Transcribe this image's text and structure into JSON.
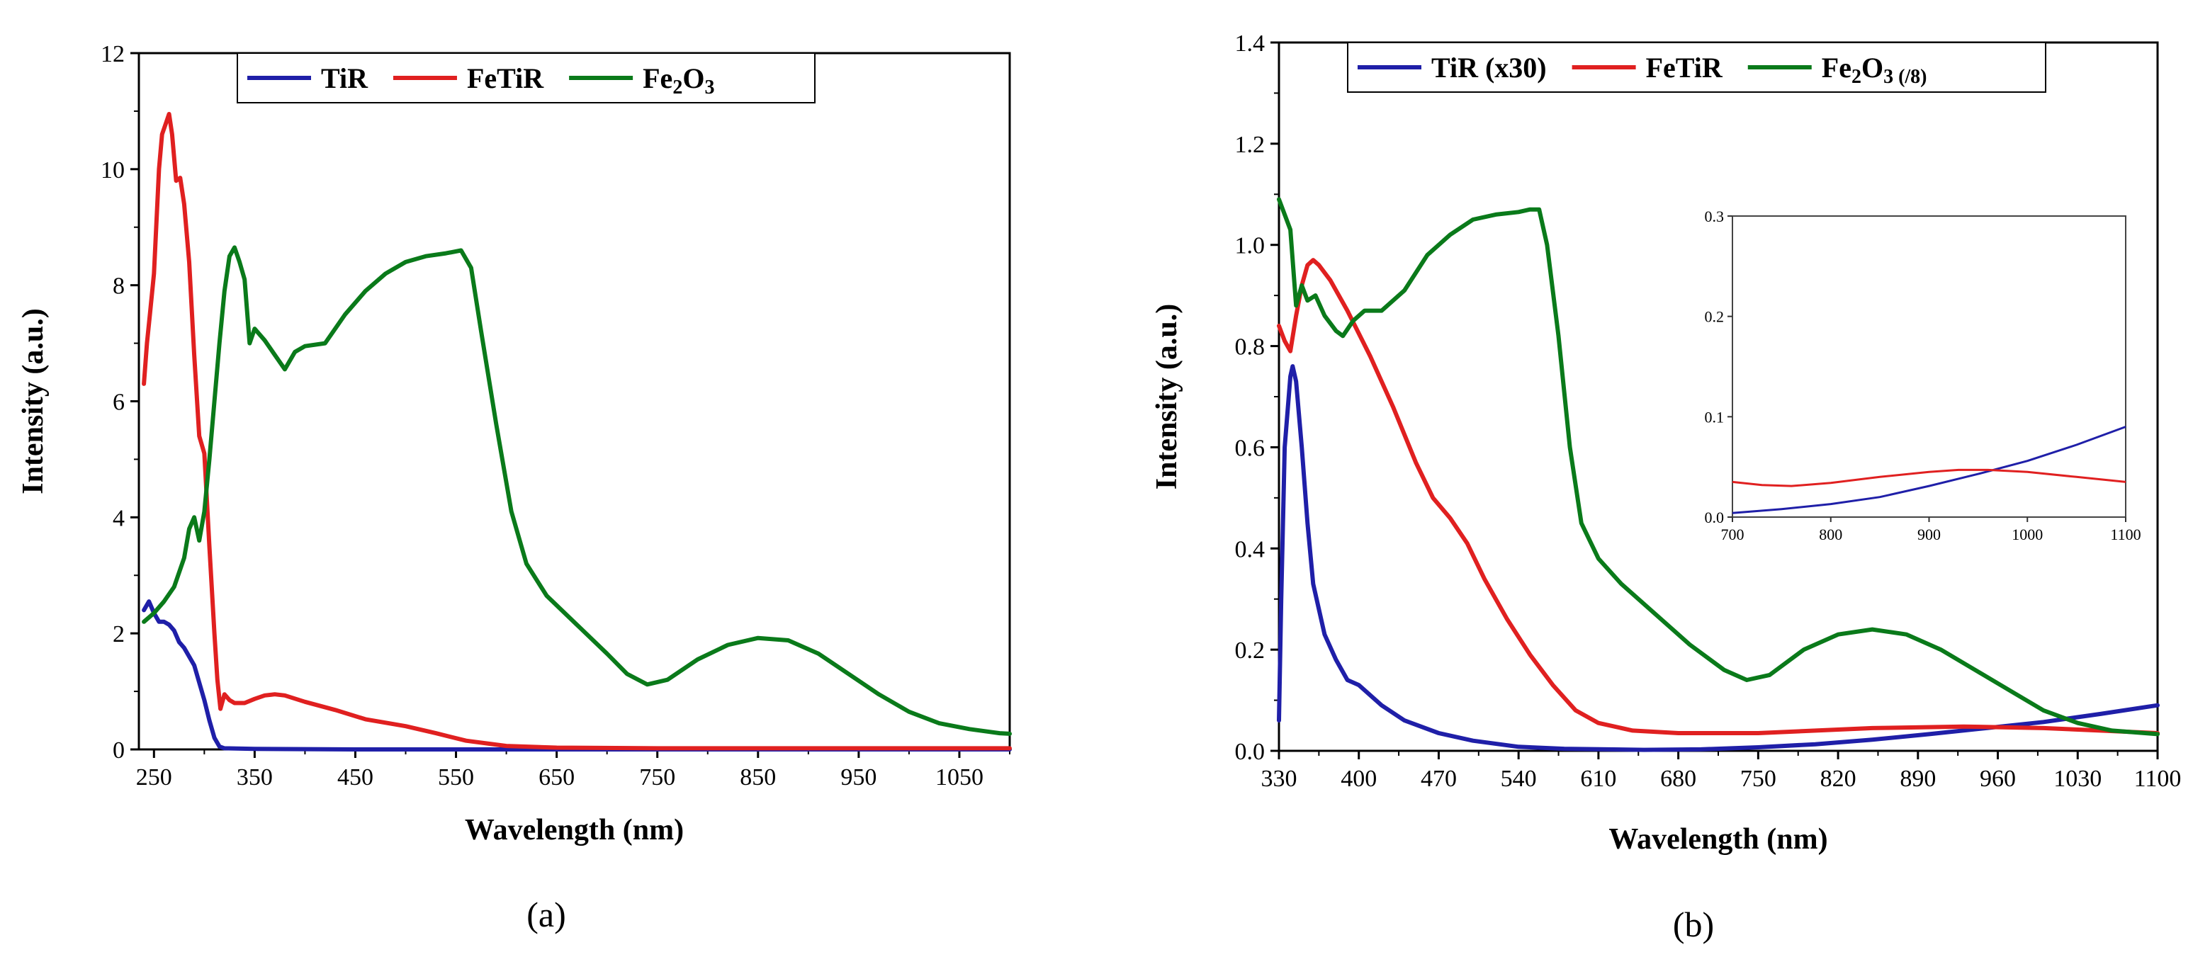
{
  "colors": {
    "TiR": "#1f1fa8",
    "FeTiR": "#e02020",
    "Fe2O3": "#0a7a1a"
  },
  "panel_labels": {
    "a": "(a)",
    "b": "(b)"
  },
  "chart_data": [
    {
      "type": "line",
      "panel": "a",
      "xlabel": "Wavelength (nm)",
      "ylabel": "Intensity (a.u.)",
      "xlim": [
        235,
        1100
      ],
      "ylim": [
        0,
        12
      ],
      "xticks": [
        250,
        350,
        450,
        550,
        650,
        750,
        850,
        950,
        1050
      ],
      "yticks": [
        0,
        2,
        4,
        6,
        8,
        10,
        12
      ],
      "legend": {
        "placement": "top-center",
        "entries": [
          {
            "key": "TiR",
            "base": "TiR",
            "sub": "",
            "tail": "",
            "tail2": ""
          },
          {
            "key": "FeTiR",
            "base": "FeTiR",
            "sub": "",
            "tail": "",
            "tail2": ""
          },
          {
            "key": "Fe2O3",
            "base": "Fe",
            "sub": "2",
            "tail": "O",
            "tail2": "3"
          }
        ]
      },
      "series": [
        {
          "name": "TiR",
          "color_key": "TiR",
          "points": [
            [
              240,
              2.4
            ],
            [
              245,
              2.55
            ],
            [
              250,
              2.35
            ],
            [
              255,
              2.2
            ],
            [
              260,
              2.2
            ],
            [
              265,
              2.15
            ],
            [
              270,
              2.05
            ],
            [
              275,
              1.85
            ],
            [
              280,
              1.75
            ],
            [
              290,
              1.45
            ],
            [
              300,
              0.85
            ],
            [
              305,
              0.5
            ],
            [
              310,
              0.2
            ],
            [
              315,
              0.05
            ],
            [
              320,
              0.02
            ],
            [
              350,
              0.01
            ],
            [
              450,
              0.0
            ],
            [
              600,
              0.0
            ],
            [
              1100,
              0.0
            ]
          ]
        },
        {
          "name": "FeTiR",
          "color_key": "FeTiR",
          "points": [
            [
              240,
              6.3
            ],
            [
              243,
              7.0
            ],
            [
              246,
              7.5
            ],
            [
              250,
              8.2
            ],
            [
              255,
              10.0
            ],
            [
              258,
              10.6
            ],
            [
              262,
              10.8
            ],
            [
              265,
              10.95
            ],
            [
              268,
              10.6
            ],
            [
              272,
              9.8
            ],
            [
              276,
              9.85
            ],
            [
              280,
              9.4
            ],
            [
              285,
              8.4
            ],
            [
              290,
              6.8
            ],
            [
              295,
              5.4
            ],
            [
              300,
              5.1
            ],
            [
              305,
              3.5
            ],
            [
              310,
              2.0
            ],
            [
              313,
              1.2
            ],
            [
              316,
              0.7
            ],
            [
              320,
              0.95
            ],
            [
              325,
              0.85
            ],
            [
              330,
              0.8
            ],
            [
              340,
              0.8
            ],
            [
              350,
              0.87
            ],
            [
              360,
              0.93
            ],
            [
              370,
              0.95
            ],
            [
              380,
              0.93
            ],
            [
              400,
              0.82
            ],
            [
              430,
              0.68
            ],
            [
              460,
              0.52
            ],
            [
              500,
              0.4
            ],
            [
              530,
              0.28
            ],
            [
              560,
              0.15
            ],
            [
              600,
              0.06
            ],
            [
              650,
              0.03
            ],
            [
              750,
              0.02
            ],
            [
              900,
              0.02
            ],
            [
              1100,
              0.02
            ]
          ]
        },
        {
          "name": "Fe2O3",
          "color_key": "Fe2O3",
          "points": [
            [
              240,
              2.2
            ],
            [
              250,
              2.35
            ],
            [
              260,
              2.55
            ],
            [
              270,
              2.8
            ],
            [
              280,
              3.3
            ],
            [
              285,
              3.8
            ],
            [
              290,
              4.0
            ],
            [
              295,
              3.6
            ],
            [
              300,
              4.1
            ],
            [
              305,
              5.0
            ],
            [
              310,
              6.0
            ],
            [
              315,
              7.0
            ],
            [
              320,
              7.9
            ],
            [
              325,
              8.5
            ],
            [
              330,
              8.65
            ],
            [
              335,
              8.4
            ],
            [
              340,
              8.1
            ],
            [
              345,
              7.0
            ],
            [
              350,
              7.25
            ],
            [
              360,
              7.05
            ],
            [
              370,
              6.8
            ],
            [
              380,
              6.55
            ],
            [
              390,
              6.85
            ],
            [
              400,
              6.95
            ],
            [
              420,
              7.0
            ],
            [
              440,
              7.5
            ],
            [
              460,
              7.9
            ],
            [
              480,
              8.2
            ],
            [
              500,
              8.4
            ],
            [
              520,
              8.5
            ],
            [
              540,
              8.55
            ],
            [
              555,
              8.6
            ],
            [
              565,
              8.3
            ],
            [
              575,
              7.2
            ],
            [
              590,
              5.6
            ],
            [
              605,
              4.1
            ],
            [
              620,
              3.2
            ],
            [
              640,
              2.65
            ],
            [
              670,
              2.15
            ],
            [
              700,
              1.65
            ],
            [
              720,
              1.3
            ],
            [
              740,
              1.12
            ],
            [
              760,
              1.2
            ],
            [
              790,
              1.55
            ],
            [
              820,
              1.8
            ],
            [
              850,
              1.92
            ],
            [
              880,
              1.88
            ],
            [
              910,
              1.65
            ],
            [
              940,
              1.3
            ],
            [
              970,
              0.95
            ],
            [
              1000,
              0.65
            ],
            [
              1030,
              0.45
            ],
            [
              1060,
              0.35
            ],
            [
              1090,
              0.28
            ],
            [
              1100,
              0.27
            ]
          ]
        }
      ]
    },
    {
      "type": "line",
      "panel": "b",
      "xlabel": "Wavelength (nm)",
      "ylabel": "Intensity (a.u.)",
      "xlim": [
        330,
        1100
      ],
      "ylim": [
        0,
        1.4
      ],
      "xticks": [
        330,
        400,
        470,
        540,
        610,
        680,
        750,
        820,
        890,
        960,
        1030,
        1100
      ],
      "yticks": [
        0.0,
        0.2,
        0.4,
        0.6,
        0.8,
        1.0,
        1.2,
        1.4
      ],
      "legend": {
        "placement": "top-center",
        "entries": [
          {
            "key": "TiR",
            "base": "TiR (x30)",
            "sub": "",
            "tail": "",
            "tail2": ""
          },
          {
            "key": "FeTiR",
            "base": "FeTiR",
            "sub": "",
            "tail": "",
            "tail2": ""
          },
          {
            "key": "Fe2O3",
            "base": "Fe",
            "sub": "2",
            "tail": "O",
            "tail2": "3 (/8)"
          }
        ]
      },
      "series": [
        {
          "name": "TiR (x30)",
          "color_key": "TiR",
          "points": [
            [
              330,
              0.06
            ],
            [
              332,
              0.3
            ],
            [
              335,
              0.6
            ],
            [
              340,
              0.74
            ],
            [
              342,
              0.76
            ],
            [
              345,
              0.73
            ],
            [
              350,
              0.6
            ],
            [
              355,
              0.45
            ],
            [
              360,
              0.33
            ],
            [
              370,
              0.23
            ],
            [
              380,
              0.18
            ],
            [
              390,
              0.14
            ],
            [
              400,
              0.13
            ],
            [
              420,
              0.09
            ],
            [
              440,
              0.06
            ],
            [
              470,
              0.035
            ],
            [
              500,
              0.02
            ],
            [
              540,
              0.008
            ],
            [
              580,
              0.004
            ],
            [
              650,
              0.002
            ],
            [
              700,
              0.003
            ],
            [
              750,
              0.007
            ],
            [
              800,
              0.013
            ],
            [
              850,
              0.022
            ],
            [
              900,
              0.033
            ],
            [
              950,
              0.045
            ],
            [
              1000,
              0.057
            ],
            [
              1050,
              0.073
            ],
            [
              1100,
              0.09
            ]
          ]
        },
        {
          "name": "FeTiR",
          "color_key": "FeTiR",
          "points": [
            [
              330,
              0.84
            ],
            [
              335,
              0.81
            ],
            [
              340,
              0.79
            ],
            [
              345,
              0.86
            ],
            [
              350,
              0.92
            ],
            [
              355,
              0.96
            ],
            [
              360,
              0.97
            ],
            [
              365,
              0.96
            ],
            [
              375,
              0.93
            ],
            [
              390,
              0.87
            ],
            [
              410,
              0.78
            ],
            [
              430,
              0.68
            ],
            [
              450,
              0.57
            ],
            [
              465,
              0.5
            ],
            [
              480,
              0.46
            ],
            [
              495,
              0.41
            ],
            [
              510,
              0.34
            ],
            [
              530,
              0.26
            ],
            [
              550,
              0.19
            ],
            [
              570,
              0.13
            ],
            [
              590,
              0.08
            ],
            [
              610,
              0.055
            ],
            [
              640,
              0.04
            ],
            [
              680,
              0.035
            ],
            [
              750,
              0.035
            ],
            [
              850,
              0.045
            ],
            [
              930,
              0.048
            ],
            [
              1000,
              0.045
            ],
            [
              1050,
              0.04
            ],
            [
              1100,
              0.035
            ]
          ]
        },
        {
          "name": "Fe2O3 (/8)",
          "color_key": "Fe2O3",
          "points": [
            [
              330,
              1.09
            ],
            [
              335,
              1.06
            ],
            [
              340,
              1.03
            ],
            [
              345,
              0.88
            ],
            [
              350,
              0.92
            ],
            [
              355,
              0.89
            ],
            [
              362,
              0.9
            ],
            [
              370,
              0.86
            ],
            [
              380,
              0.83
            ],
            [
              386,
              0.82
            ],
            [
              395,
              0.85
            ],
            [
              405,
              0.87
            ],
            [
              420,
              0.87
            ],
            [
              440,
              0.91
            ],
            [
              460,
              0.98
            ],
            [
              480,
              1.02
            ],
            [
              500,
              1.05
            ],
            [
              520,
              1.06
            ],
            [
              540,
              1.065
            ],
            [
              550,
              1.07
            ],
            [
              558,
              1.07
            ],
            [
              565,
              1.0
            ],
            [
              575,
              0.82
            ],
            [
              585,
              0.6
            ],
            [
              595,
              0.45
            ],
            [
              610,
              0.38
            ],
            [
              630,
              0.33
            ],
            [
              660,
              0.27
            ],
            [
              690,
              0.21
            ],
            [
              720,
              0.16
            ],
            [
              740,
              0.14
            ],
            [
              760,
              0.15
            ],
            [
              790,
              0.2
            ],
            [
              820,
              0.23
            ],
            [
              850,
              0.24
            ],
            [
              880,
              0.23
            ],
            [
              910,
              0.2
            ],
            [
              940,
              0.16
            ],
            [
              970,
              0.12
            ],
            [
              1000,
              0.08
            ],
            [
              1030,
              0.055
            ],
            [
              1060,
              0.04
            ],
            [
              1100,
              0.033
            ]
          ]
        }
      ],
      "inset": {
        "xlim": [
          700,
          1100
        ],
        "ylim": [
          0,
          0.3
        ],
        "xticks": [
          700,
          800,
          900,
          1000,
          1100
        ],
        "yticks": [
          0.0,
          0.1,
          0.2,
          0.3
        ],
        "series": [
          {
            "name": "TiR (x30)",
            "color_key": "TiR",
            "points": [
              [
                700,
                0.004
              ],
              [
                750,
                0.008
              ],
              [
                800,
                0.013
              ],
              [
                850,
                0.02
              ],
              [
                900,
                0.031
              ],
              [
                950,
                0.043
              ],
              [
                1000,
                0.056
              ],
              [
                1050,
                0.072
              ],
              [
                1100,
                0.09
              ]
            ]
          },
          {
            "name": "FeTiR",
            "color_key": "FeTiR",
            "points": [
              [
                700,
                0.035
              ],
              [
                730,
                0.032
              ],
              [
                760,
                0.031
              ],
              [
                800,
                0.034
              ],
              [
                850,
                0.04
              ],
              [
                900,
                0.045
              ],
              [
                930,
                0.047
              ],
              [
                960,
                0.047
              ],
              [
                1000,
                0.045
              ],
              [
                1050,
                0.04
              ],
              [
                1100,
                0.035
              ]
            ]
          }
        ]
      }
    }
  ]
}
